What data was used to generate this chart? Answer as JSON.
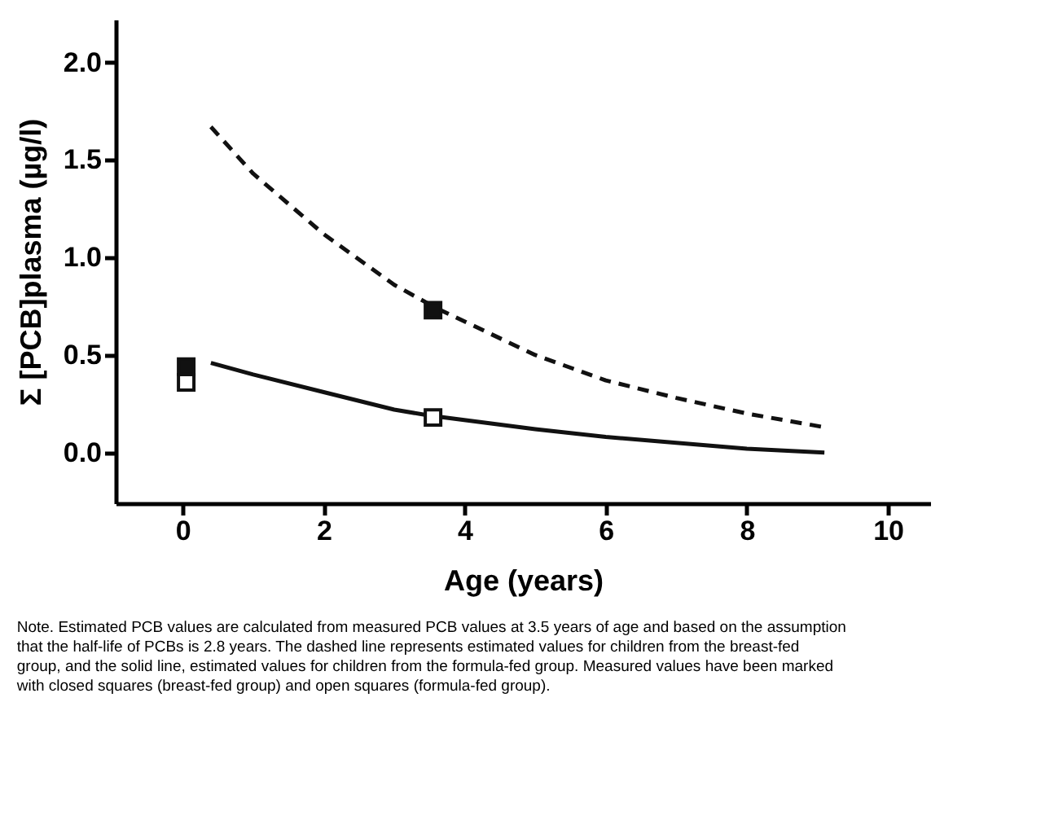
{
  "chart_data": {
    "type": "line",
    "xlabel": "Age (years)",
    "ylabel": "Σ [PCB]plasma (µg/l)",
    "xlim": [
      -0.95,
      10.6
    ],
    "ylim": [
      -0.26,
      2.22
    ],
    "xticks": [
      0,
      2,
      4,
      6,
      8,
      10
    ],
    "yticks": [
      {
        "value": 0,
        "label": "0.0"
      },
      {
        "value": 0.5,
        "label": "0.5"
      },
      {
        "value": 1,
        "label": "1.0"
      },
      {
        "value": 1.5,
        "label": "1.5"
      },
      {
        "value": 2,
        "label": "2.0"
      }
    ],
    "grid": false,
    "series": [
      {
        "line_style": "dashed",
        "marker": "none",
        "color": "#111111",
        "x": [
          0.4,
          1,
          2,
          3,
          3.6,
          5,
          6,
          7,
          8,
          9.1
        ],
        "values": [
          1.67,
          1.43,
          1.12,
          0.86,
          0.74,
          0.5,
          0.37,
          0.28,
          0.2,
          0.13
        ]
      },
      {
        "line_style": "solid",
        "marker": "none",
        "color": "#111111",
        "x": [
          0.4,
          1,
          2,
          3,
          3.5,
          5,
          6,
          7,
          8,
          9.1
        ],
        "values": [
          0.46,
          0.4,
          0.31,
          0.22,
          0.19,
          0.12,
          0.08,
          0.05,
          0.02,
          0.0
        ]
      },
      {
        "type": "scatter",
        "marker": "square",
        "color": "#111111",
        "x": [
          0.05,
          3.55
        ],
        "values": [
          0.44,
          0.73
        ]
      },
      {
        "type": "scatter",
        "marker": "square",
        "color": "#ffffff",
        "x": [
          0.05,
          3.55
        ],
        "values": [
          0.36,
          0.18
        ]
      }
    ],
    "annotations": [
      "Note. Estimated PCB values are calculated from measured PCB values at 3.5 years of age and based on the assumption that the half-life of PCBs is 2.8 years. The dashed line represents estimated values for children from the breast-fed group, and the solid line, estimated values for children from the formula-fed group. Measured values have been marked with closed squares (breast-fed group) and open squares (formula-fed group)."
    ]
  }
}
